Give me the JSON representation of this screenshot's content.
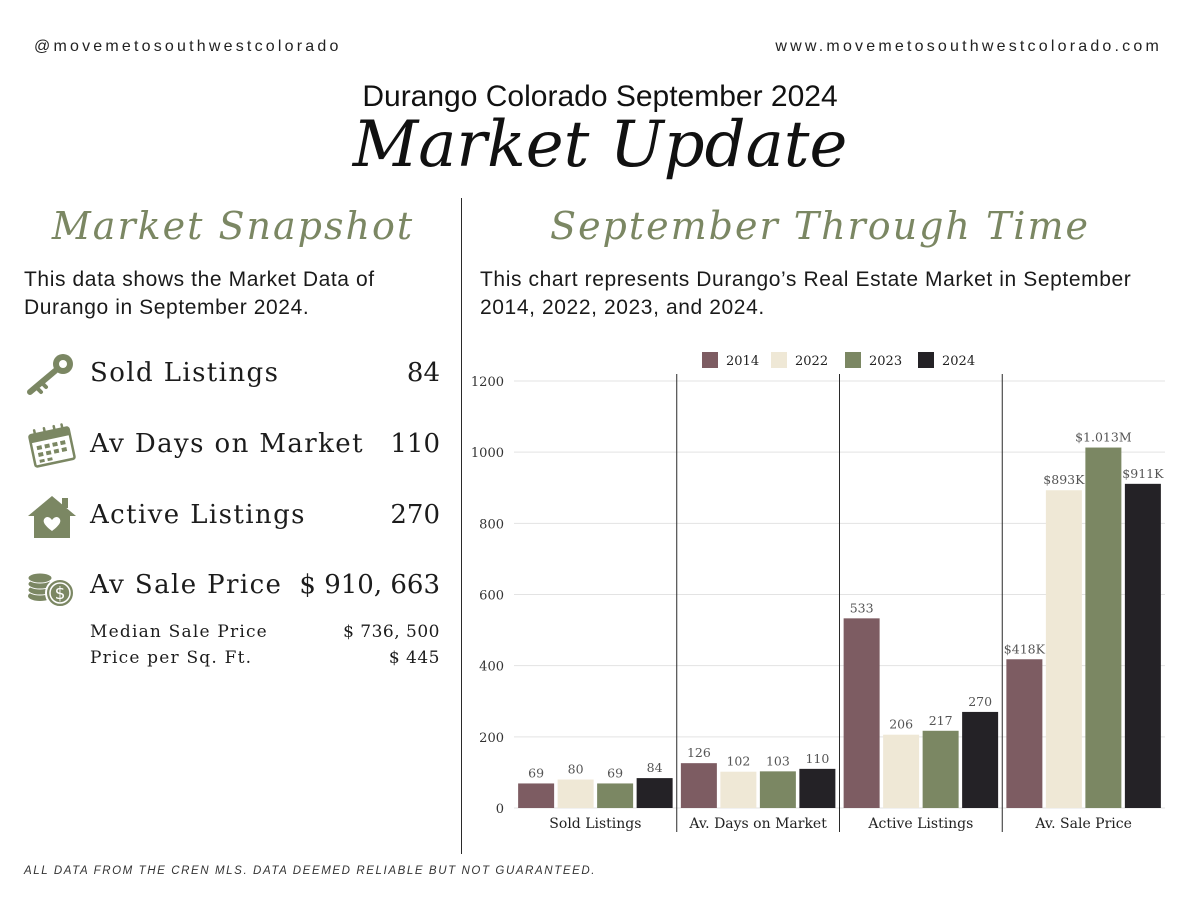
{
  "header": {
    "handle": "@movemetosouthwestcolorado",
    "website": "www.movemetosouthwestcolorado.com",
    "subtitle": "Durango Colorado September 2024",
    "title": "Market Update"
  },
  "snapshot": {
    "heading": "Market Snapshot",
    "description": "This data shows the Market Data of Durango in September 2024.",
    "stats": [
      {
        "icon": "key-icon",
        "label": "Sold Listings",
        "value": "84"
      },
      {
        "icon": "calendar-icon",
        "label": "Av Days on Market",
        "value": "110"
      },
      {
        "icon": "house-heart-icon",
        "label": "Active Listings",
        "value": "270"
      },
      {
        "icon": "coins-dollar-icon",
        "label": "Av Sale Price",
        "value": "$ 910, 663"
      }
    ],
    "sub_stats": [
      {
        "label": "Median Sale Price",
        "value": "$ 736, 500"
      },
      {
        "label": "Price per Sq. Ft.",
        "value": "$ 445"
      }
    ]
  },
  "through_time": {
    "heading": "September Through Time",
    "description": "This chart represents Durango’s Real Estate Market in September  2014, 2022, 2023, and 2024."
  },
  "footnote": "ALL DATA FROM THE CREN MLS. DATA DEEMED RELIABLE BUT NOT GUARANTEED.",
  "colors": {
    "accent": "#7b8763",
    "series_2014": "#7d5c62",
    "series_2022": "#efe8d6",
    "series_2023": "#7b8763",
    "series_2024": "#242226"
  },
  "chart_data": {
    "type": "bar",
    "title": "",
    "categories": [
      "Sold Listings",
      "Av. Days on Market",
      "Active Listings",
      "Av. Sale Price"
    ],
    "series": [
      {
        "name": "2014",
        "values": [
          69,
          126,
          533,
          418
        ],
        "labels": [
          "69",
          "126",
          "533",
          "$418K"
        ]
      },
      {
        "name": "2022",
        "values": [
          80,
          102,
          206,
          893
        ],
        "labels": [
          "80",
          "102",
          "206",
          "$893K"
        ]
      },
      {
        "name": "2023",
        "values": [
          69,
          103,
          217,
          1013
        ],
        "labels": [
          "69",
          "103",
          "217",
          "$1.013M"
        ]
      },
      {
        "name": "2024",
        "values": [
          84,
          110,
          270,
          911
        ],
        "labels": [
          "84",
          "110",
          "270",
          "$911K"
        ]
      }
    ],
    "yticks": [
      0,
      200,
      400,
      600,
      800,
      1000,
      1200
    ],
    "ylim": [
      0,
      1200
    ],
    "xlabel": "",
    "ylabel": "",
    "grid": true,
    "legend": "top-center"
  }
}
